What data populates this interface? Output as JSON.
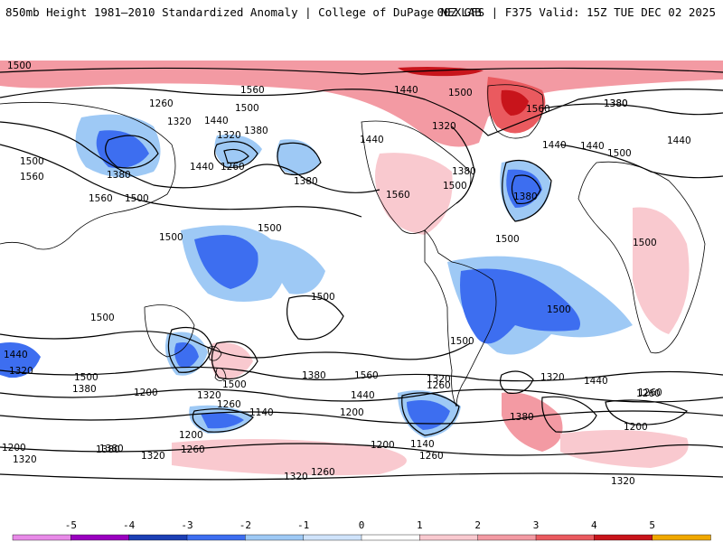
{
  "header": {
    "left_title": "850mb Height 1981–2010 Standardized Anomaly | College of DuPage NEXLAB",
    "right_title": "00Z GFS | F375 Valid: 15Z TUE DEC 02 2025"
  },
  "colorbar": {
    "ticks": [
      "-5",
      "-4",
      "-3",
      "-2",
      "-1",
      "0",
      "1",
      "2",
      "3",
      "4",
      "5"
    ],
    "colors": [
      "#e88ae8",
      "#9a00c0",
      "#1c3fb5",
      "#3d6ef0",
      "#9ec9f5",
      "#cfe3fb",
      "#ffffff",
      "#f9c9cf",
      "#f39aa3",
      "#ea5a5f",
      "#c8141b",
      "#f0a800"
    ]
  },
  "contour_labels": [
    "1500",
    "1560",
    "1440",
    "1500",
    "1260",
    "1320",
    "1440",
    "1380",
    "1320",
    "1440",
    "1560",
    "1380",
    "1500",
    "1260",
    "1380",
    "1440",
    "1500",
    "1560",
    "1320",
    "1380",
    "1440",
    "1500",
    "1560",
    "1380",
    "1380",
    "1500",
    "1500",
    "1500",
    "1560",
    "1440",
    "1380",
    "1500",
    "1500",
    "1500",
    "1440",
    "1320",
    "1380",
    "1500",
    "1260",
    "1440",
    "1500",
    "1560",
    "1380",
    "1320",
    "1260",
    "1320",
    "1440",
    "1500",
    "1500",
    "1500",
    "1500",
    "1320",
    "1440",
    "1260",
    "1380",
    "1200",
    "1200",
    "1380",
    "1140",
    "1200",
    "1260",
    "1260",
    "1320",
    "1200",
    "1140",
    "1200",
    "1200",
    "1260",
    "1260",
    "1320",
    "1320",
    "1320",
    "1380"
  ],
  "legend_colors": {
    "ocean": "#ffffff",
    "land_outline": "#000000",
    "contour": "#000000"
  }
}
